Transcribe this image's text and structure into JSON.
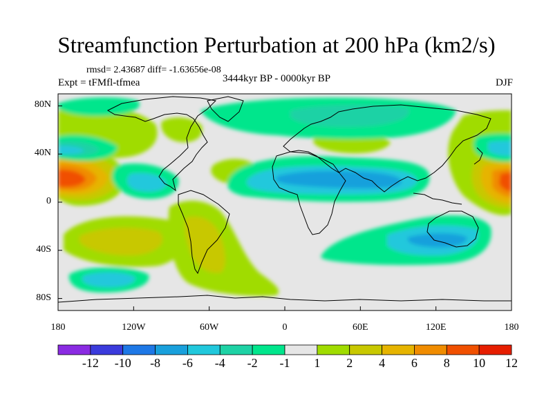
{
  "title": "Streamfunction Perturbation at 200 hPa (km2/s)",
  "stats": "rmsd= 2.43687  diff= -1.63656e-08",
  "experiment": "Expt = tFMfl-tfmea",
  "period": "3444kyr BP - 0000kyr BP",
  "season": "DJF",
  "axes": {
    "y_ticks": [
      {
        "label": "80N",
        "lat": 80
      },
      {
        "label": "40N",
        "lat": 40
      },
      {
        "label": "0",
        "lat": 0
      },
      {
        "label": "40S",
        "lat": -40
      },
      {
        "label": "80S",
        "lat": -80
      }
    ],
    "x_ticks": [
      {
        "label": "180",
        "lon": -180
      },
      {
        "label": "120W",
        "lon": -120
      },
      {
        "label": "60W",
        "lon": -60
      },
      {
        "label": "0",
        "lon": 0
      },
      {
        "label": "60E",
        "lon": 60
      },
      {
        "label": "120E",
        "lon": 120
      },
      {
        "label": "180",
        "lon": 180
      }
    ]
  },
  "colorbar": {
    "colors": [
      "#8a2be2",
      "#3b3bdc",
      "#1e78e6",
      "#19a0dc",
      "#21c8dc",
      "#1ed2a5",
      "#00e68c",
      "#e6e6e6",
      "#a0dc00",
      "#c8c800",
      "#e6b400",
      "#f08c00",
      "#f05000",
      "#e61e00"
    ],
    "labels": [
      "-12",
      "-10",
      "-8",
      "-6",
      "-4",
      "-2",
      "-1",
      "1",
      "2",
      "4",
      "6",
      "8",
      "10",
      "12"
    ]
  },
  "chart_data": {
    "type": "heatmap",
    "variable": "Streamfunction perturbation, 200 hPa",
    "units": "km2/s",
    "lon_range": [
      -180,
      180
    ],
    "lat_range": [
      -90,
      90
    ],
    "levels": [
      -12,
      -10,
      -8,
      -6,
      -4,
      -2,
      -1,
      1,
      2,
      4,
      6,
      8,
      10,
      12
    ],
    "features": [
      {
        "region": "North Pacific subtropics (date line, ~18N)",
        "peak": 11,
        "lon": 180,
        "lat": 18
      },
      {
        "region": "Eastern Pacific subtropics (~140W, 5N)",
        "peak": -4,
        "lon": -140,
        "lat": 5
      },
      {
        "region": "North Pacific high latitudes (~165W, 65N)",
        "peak": 3,
        "lon": -165,
        "lat": 65
      },
      {
        "region": "Northwest Pacific mid-latitudes (~165E, 40N)",
        "peak": -5,
        "lon": 165,
        "lat": 40
      },
      {
        "region": "Africa / Arabian Sea to Indian Ocean (~45E, 15N)",
        "peak": -5,
        "lon": 45,
        "lat": 15
      },
      {
        "region": "Australia / Indian Ocean (~100E, 30S)",
        "peak": -4,
        "lon": 100,
        "lat": -30
      },
      {
        "region": "Southeast Pacific (~135W, 20S)",
        "peak": 3,
        "lon": -135,
        "lat": -20
      },
      {
        "region": "Southern Ocean south Pacific (~150W, 60S)",
        "peak": -3,
        "lon": -150,
        "lat": -60
      },
      {
        "region": "North Atlantic / Eurasia high latitudes (~40E, 70N)",
        "peak": -2,
        "lon": 40,
        "lat": 70
      },
      {
        "region": "South America (~60W, 20S)",
        "peak": 2,
        "lon": -60,
        "lat": -20
      },
      {
        "region": "Western Pacific subtropics (~170E, 15N)",
        "peak": 9,
        "lon": 170,
        "lat": 15
      }
    ]
  }
}
